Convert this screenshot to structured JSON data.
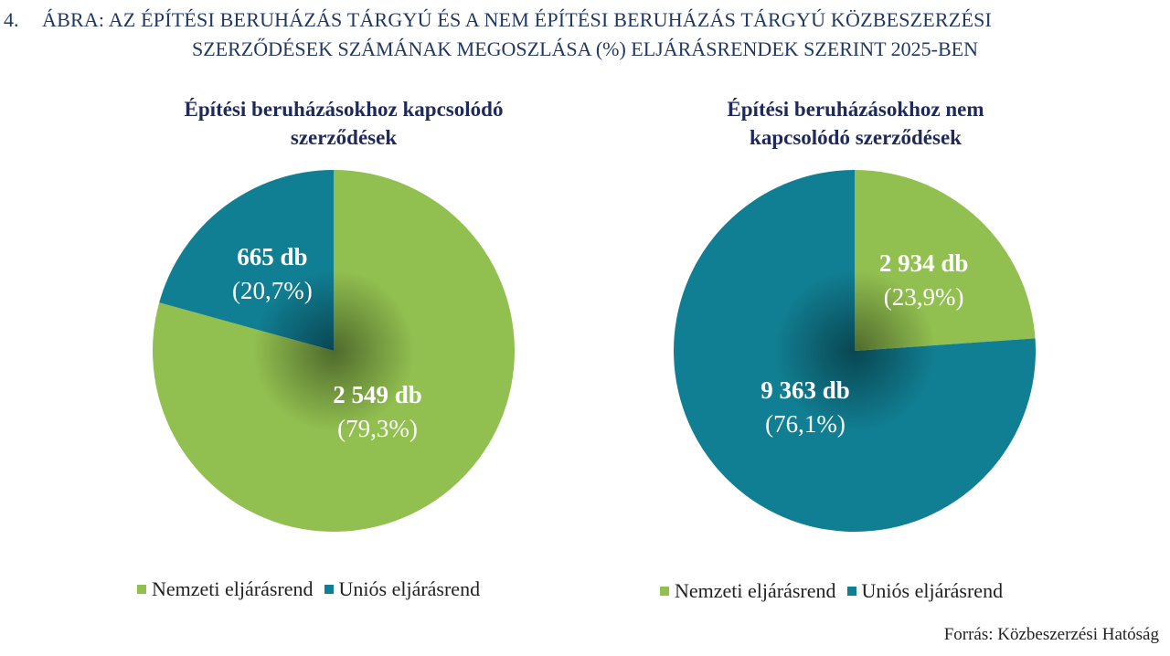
{
  "figure": {
    "number": "4.",
    "title_line1": "ÁBRA: AZ ÉPÍTÉSI BERUHÁZÁS TÁRGYÚ ÉS A NEM ÉPÍTÉSI BERUHÁZÁS TÁRGYÚ KÖZBESZERZÉSI",
    "title_line2": "SZERZŐDÉSEK SZÁMÁNAK MEGOSZLÁSA (%) ELJÁRÁSRENDEK SZERINT 2025-BEN",
    "source": "Forrás: Közbeszerzési Hatóság"
  },
  "colors": {
    "nemzeti": "#92c050",
    "unios": "#117f93",
    "title": "#1f3864"
  },
  "chart_data": [
    {
      "type": "pie",
      "title_line1": "Építési beruházásokhoz kapcsolódó",
      "title_line2": "szerződések",
      "slices": [
        {
          "name": "Nemzeti eljárásrend",
          "count": 2549,
          "count_label": "2 549 db",
          "percent": 79.3,
          "percent_label": "(79,3%)"
        },
        {
          "name": "Uniós eljárásrend",
          "count": 665,
          "count_label": "665 db",
          "percent": 20.7,
          "percent_label": "(20,7%)"
        }
      ],
      "legend": [
        "Nemzeti eljárásrend",
        "Uniós eljárásrend"
      ],
      "legend_position": "bottom"
    },
    {
      "type": "pie",
      "title_line1": "Építési beruházásokhoz nem",
      "title_line2": "kapcsolódó szerződések",
      "slices": [
        {
          "name": "Nemzeti eljárásrend",
          "count": 2934,
          "count_label": "2 934 db",
          "percent": 23.9,
          "percent_label": "(23,9%)"
        },
        {
          "name": "Uniós eljárásrend",
          "count": 9363,
          "count_label": "9 363 db",
          "percent": 76.1,
          "percent_label": "(76,1%)"
        }
      ],
      "legend": [
        "Nemzeti eljárásrend",
        "Uniós eljárásrend"
      ],
      "legend_position": "bottom"
    }
  ]
}
